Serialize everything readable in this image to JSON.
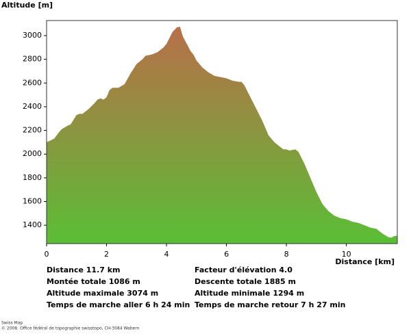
{
  "chart_data": {
    "type": "area",
    "ylabel": "Altitude [m]",
    "xlabel": "Distance [km]",
    "x": [
      0,
      0.25,
      0.4,
      0.5,
      0.7,
      0.8,
      0.9,
      1.0,
      1.1,
      1.2,
      1.4,
      1.6,
      1.7,
      1.8,
      1.9,
      2.0,
      2.1,
      2.2,
      2.4,
      2.6,
      2.8,
      3.0,
      3.2,
      3.3,
      3.5,
      3.7,
      3.9,
      4.0,
      4.1,
      4.2,
      4.35,
      4.45,
      4.55,
      4.7,
      4.8,
      4.9,
      5.0,
      5.2,
      5.4,
      5.6,
      5.8,
      6.0,
      6.2,
      6.4,
      6.5,
      6.6,
      6.8,
      7.0,
      7.2,
      7.4,
      7.6,
      7.8,
      7.9,
      8.0,
      8.1,
      8.3,
      8.4,
      8.6,
      8.8,
      9.0,
      9.2,
      9.4,
      9.6,
      9.8,
      10.0,
      10.2,
      10.4,
      10.6,
      10.8,
      11.0,
      11.2,
      11.4,
      11.5,
      11.6,
      11.7
    ],
    "values": [
      2100,
      2130,
      2180,
      2210,
      2240,
      2250,
      2290,
      2330,
      2340,
      2340,
      2380,
      2430,
      2460,
      2470,
      2460,
      2480,
      2540,
      2560,
      2560,
      2590,
      2680,
      2760,
      2800,
      2830,
      2840,
      2860,
      2900,
      2930,
      2980,
      3030,
      3070,
      3074,
      2990,
      2920,
      2870,
      2840,
      2790,
      2730,
      2690,
      2660,
      2650,
      2640,
      2620,
      2610,
      2610,
      2580,
      2480,
      2380,
      2280,
      2160,
      2100,
      2060,
      2040,
      2040,
      2030,
      2040,
      2020,
      1920,
      1800,
      1680,
      1580,
      1520,
      1480,
      1460,
      1450,
      1430,
      1420,
      1400,
      1380,
      1370,
      1330,
      1300,
      1294,
      1310,
      1310
    ],
    "gradient": [
      "#b86f49",
      "#5abe36"
    ],
    "xlim": [
      0,
      11.7
    ],
    "ylim": [
      1245,
      3127
    ],
    "xticks": [
      0,
      2,
      4,
      6,
      8,
      10
    ],
    "yticks": [
      1400,
      1600,
      1800,
      2000,
      2200,
      2400,
      2600,
      2800,
      3000
    ],
    "grid": false,
    "stats": [
      [
        "Distance 11.7 km",
        "Facteur d'élévation 4.0"
      ],
      [
        "Montée totale  1086 m",
        "Descente totale  1885 m"
      ],
      [
        "Altitude maximale  3074 m",
        "Altitude minimale  1294 m"
      ],
      [
        "Temps de marche aller  6 h 24 min",
        "Temps de marche retour  7 h 27 min"
      ]
    ],
    "footer": [
      "Swiss Map",
      "© 2008. Office fédéral de topographie swisstopo, CH-3084 Wabern"
    ]
  }
}
